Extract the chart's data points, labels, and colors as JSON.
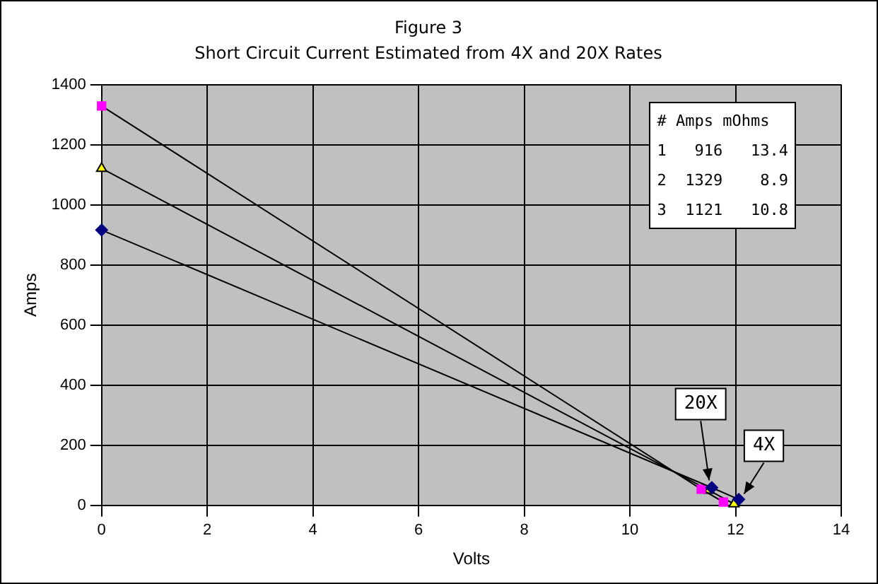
{
  "chart_data": {
    "type": "line",
    "title": "Figure 3",
    "subtitle": "Short Circuit Current Estimated from 4X and 20X Rates",
    "xlabel": "Volts",
    "ylabel": "Amps",
    "series": [
      {
        "color": "#000080",
        "marker": "diamond",
        "x": [
          0,
          11.55,
          12.06
        ],
        "values": [
          916,
          59,
          20
        ]
      },
      {
        "color": "#ff00ff",
        "marker": "square",
        "x": [
          0,
          11.35,
          11.77
        ],
        "values": [
          1329,
          54,
          11
        ]
      },
      {
        "color": "#ffff00",
        "marker": "triangle",
        "x": [
          0,
          11.5,
          11.97
        ],
        "values": [
          1121,
          50,
          5
        ]
      }
    ],
    "xlim": [
      0,
      14
    ],
    "xticks": [
      0,
      2,
      4,
      6,
      8,
      10,
      12,
      14
    ],
    "ylim": [
      0,
      1400
    ],
    "yticks": [
      0,
      200,
      400,
      600,
      800,
      1000,
      1200,
      1400
    ],
    "grid": true,
    "legend": false,
    "annotations": [
      "# Amps mOhms",
      "1   916   13.4",
      "2  1329    8.9",
      "3  1121   10.8",
      {
        "text": "20X",
        "x": 11.5,
        "y": 55
      },
      {
        "text": "4X",
        "x": 12,
        "y": 10
      }
    ]
  }
}
